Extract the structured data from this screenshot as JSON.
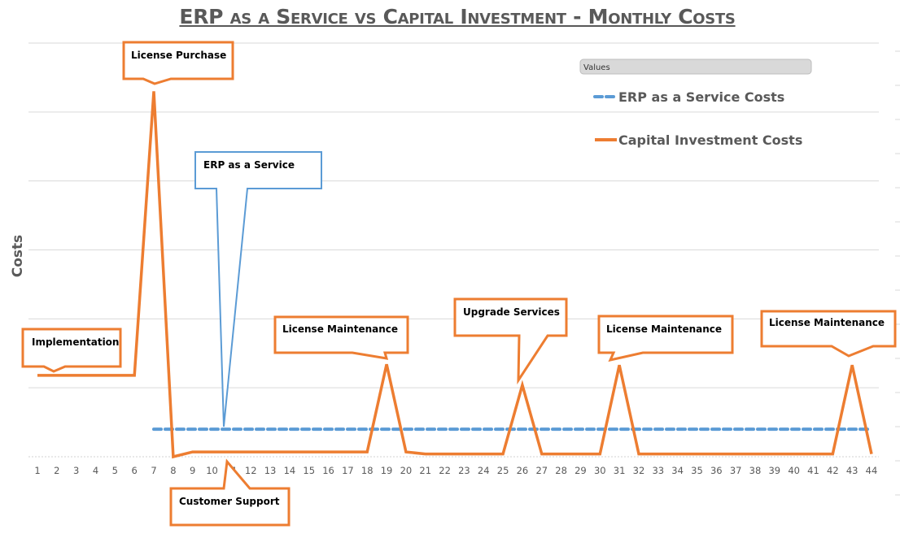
{
  "chart_data": {
    "type": "line",
    "title": "ERP as a Service vs Capital Investment - Monthly Costs",
    "xlabel": "",
    "ylabel": "Costs",
    "x": [
      1,
      2,
      3,
      4,
      5,
      6,
      7,
      8,
      9,
      10,
      11,
      12,
      13,
      14,
      15,
      16,
      17,
      18,
      19,
      20,
      21,
      22,
      23,
      24,
      25,
      26,
      27,
      28,
      29,
      30,
      31,
      32,
      33,
      34,
      35,
      36,
      37,
      38,
      39,
      40,
      41,
      42,
      43,
      44
    ],
    "ylim": [
      0,
      6
    ],
    "y_tick_labels_shown": false,
    "grid": true,
    "legend": {
      "title": "Values",
      "placement": "top-right"
    },
    "series": [
      {
        "name": "ERP as a Service Costs",
        "color": "#5B9BD5",
        "style": "dashed",
        "values": [
          null,
          null,
          null,
          null,
          null,
          null,
          0.4,
          0.4,
          0.4,
          0.4,
          0.4,
          0.4,
          0.4,
          0.4,
          0.4,
          0.4,
          0.4,
          0.4,
          0.4,
          0.4,
          0.4,
          0.4,
          0.4,
          0.4,
          0.4,
          0.4,
          0.4,
          0.4,
          0.4,
          0.4,
          0.4,
          0.4,
          0.4,
          0.4,
          0.4,
          0.4,
          0.4,
          0.4,
          0.4,
          0.4,
          0.4,
          0.4,
          0.4,
          0.4
        ]
      },
      {
        "name": "Capital Investment Costs",
        "color": "#ED7D31",
        "style": "solid",
        "values": [
          1.18,
          1.18,
          1.18,
          1.18,
          1.18,
          1.18,
          5.3,
          0,
          0.07,
          0.07,
          0.07,
          0.07,
          0.07,
          0.07,
          0.07,
          0.07,
          0.07,
          0.07,
          1.34,
          0.07,
          0.04,
          0.04,
          0.04,
          0.04,
          0.04,
          1.04,
          0.04,
          0.04,
          0.04,
          0.04,
          1.33,
          0.04,
          0.04,
          0.04,
          0.04,
          0.04,
          0.04,
          0.04,
          0.04,
          0.04,
          0.04,
          0.04,
          1.33,
          0.04
        ]
      }
    ],
    "annotations": [
      {
        "text": "Implementation",
        "series": "Capital Investment Costs",
        "x": 2
      },
      {
        "text": "License Purchase",
        "series": "Capital Investment Costs",
        "x": 7
      },
      {
        "text": "ERP as a Service",
        "series": "ERP as a Service Costs",
        "x": 11
      },
      {
        "text": "License Maintenance",
        "series": "Capital Investment Costs",
        "x": 19
      },
      {
        "text": "Customer Support",
        "series": "Capital Investment Costs",
        "x": 11
      },
      {
        "text": "Upgrade Services",
        "series": "Capital Investment Costs",
        "x": 26
      },
      {
        "text": "License Maintenance",
        "series": "Capital Investment Costs",
        "x": 31
      },
      {
        "text": "License Maintenance",
        "series": "Capital Investment Costs",
        "x": 43
      }
    ]
  }
}
